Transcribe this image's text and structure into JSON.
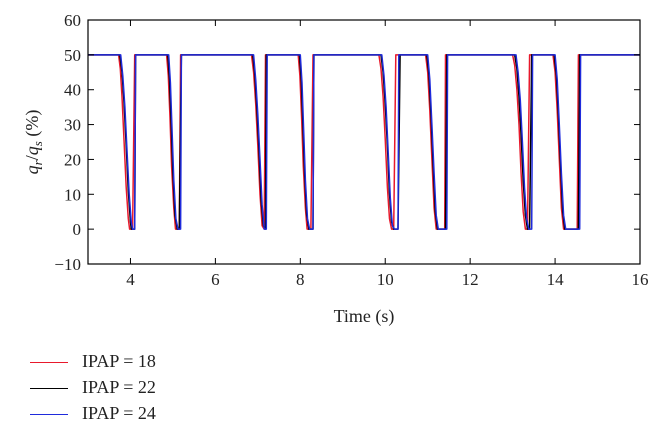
{
  "chart_data": {
    "type": "line",
    "title": "",
    "xlabel": "Time (s)",
    "ylabel": "q_r/q_s (%)",
    "xlim": [
      3,
      16
    ],
    "ylim": [
      -10,
      60
    ],
    "xticks": [
      4,
      6,
      8,
      10,
      12,
      14,
      16
    ],
    "yticks": [
      -10,
      0,
      10,
      20,
      30,
      40,
      50,
      60
    ],
    "grid": false,
    "legend": "below-left",
    "series": [
      {
        "name": "IPAP = 18",
        "color": "#e8192c",
        "x": [
          3.0,
          3.72,
          3.76,
          3.8,
          3.85,
          3.9,
          3.95,
          3.98,
          4.0,
          4.02,
          4.05,
          4.1,
          4.2,
          4.85,
          4.89,
          4.93,
          4.97,
          5.02,
          5.06,
          5.1,
          5.15,
          5.18,
          5.3,
          6.85,
          6.9,
          6.95,
          7.0,
          7.05,
          7.1,
          7.15,
          7.18,
          7.25,
          7.95,
          7.99,
          8.03,
          8.07,
          8.12,
          8.16,
          8.2,
          8.25,
          8.3,
          9.85,
          9.9,
          9.95,
          10.0,
          10.05,
          10.1,
          10.15,
          10.2,
          10.25,
          10.35,
          10.95,
          11.0,
          11.05,
          11.1,
          11.15,
          11.2,
          11.4,
          11.42,
          11.5,
          13.0,
          13.05,
          13.1,
          13.15,
          13.2,
          13.25,
          13.3,
          13.35,
          13.4,
          13.5,
          13.95,
          14.0,
          14.05,
          14.1,
          14.15,
          14.2,
          14.52,
          14.55,
          14.65,
          16.0
        ],
        "y": [
          50,
          50,
          46,
          38,
          25,
          12,
          3,
          0,
          0,
          0,
          0,
          50,
          50,
          50,
          44,
          32,
          18,
          6,
          0,
          0,
          0,
          50,
          50,
          50,
          45,
          36,
          24,
          10,
          1,
          0,
          50,
          50,
          50,
          44,
          32,
          18,
          6,
          0,
          0,
          0,
          50,
          50,
          46,
          38,
          26,
          12,
          3,
          0,
          0,
          50,
          50,
          50,
          45,
          34,
          20,
          6,
          0,
          0,
          50,
          50,
          50,
          47,
          40,
          30,
          16,
          5,
          0,
          0,
          50,
          50,
          50,
          45,
          34,
          20,
          6,
          0,
          0,
          50,
          50,
          50
        ]
      },
      {
        "name": "IPAP = 22",
        "color": "#000000",
        "x": [
          3.0,
          3.75,
          3.8,
          3.85,
          3.9,
          3.95,
          4.0,
          4.02,
          4.05,
          4.1,
          4.12,
          4.2,
          4.88,
          4.92,
          4.96,
          5.0,
          5.05,
          5.1,
          5.15,
          5.2,
          5.3,
          6.88,
          6.93,
          6.98,
          7.03,
          7.08,
          7.13,
          7.18,
          7.2,
          7.25,
          7.98,
          8.02,
          8.06,
          8.1,
          8.15,
          8.2,
          8.25,
          8.3,
          8.32,
          9.9,
          9.95,
          10.0,
          10.05,
          10.1,
          10.15,
          10.2,
          10.25,
          10.3,
          10.35,
          10.98,
          11.03,
          11.08,
          11.13,
          11.18,
          11.23,
          11.42,
          11.45,
          11.5,
          13.05,
          13.1,
          13.15,
          13.2,
          13.25,
          13.3,
          13.35,
          13.4,
          13.45,
          13.5,
          13.98,
          14.03,
          14.08,
          14.13,
          14.18,
          14.23,
          14.55,
          14.58,
          14.65,
          16.0
        ],
        "y": [
          50,
          50,
          45,
          36,
          24,
          11,
          2,
          0,
          0,
          0,
          50,
          50,
          50,
          43,
          30,
          16,
          4,
          0,
          0,
          50,
          50,
          50,
          44,
          34,
          22,
          8,
          1,
          0,
          50,
          50,
          50,
          43,
          30,
          16,
          4,
          0,
          0,
          0,
          50,
          50,
          45,
          36,
          24,
          10,
          2,
          0,
          0,
          0,
          50,
          50,
          44,
          32,
          18,
          5,
          0,
          0,
          50,
          50,
          50,
          46,
          38,
          27,
          14,
          4,
          0,
          0,
          50,
          50,
          50,
          44,
          32,
          18,
          5,
          0,
          0,
          50,
          50,
          50
        ]
      },
      {
        "name": "IPAP = 24",
        "color": "#1f2bdc",
        "x": [
          3.0,
          3.77,
          3.82,
          3.87,
          3.92,
          3.97,
          4.02,
          4.05,
          4.1,
          4.12,
          4.2,
          4.9,
          4.94,
          4.98,
          5.02,
          5.07,
          5.12,
          5.18,
          5.2,
          5.3,
          6.9,
          6.95,
          7.0,
          7.05,
          7.1,
          7.15,
          7.2,
          7.22,
          7.25,
          8.0,
          8.04,
          8.08,
          8.12,
          8.17,
          8.22,
          8.3,
          8.32,
          9.92,
          9.97,
          10.02,
          10.07,
          10.12,
          10.17,
          10.22,
          10.3,
          10.32,
          10.35,
          11.0,
          11.05,
          11.1,
          11.15,
          11.2,
          11.25,
          11.45,
          11.47,
          11.5,
          13.08,
          13.13,
          13.18,
          13.23,
          13.28,
          13.33,
          13.38,
          13.45,
          13.47,
          13.5,
          14.0,
          14.05,
          14.1,
          14.15,
          14.2,
          14.25,
          14.58,
          14.6,
          14.65,
          16.0
        ],
        "y": [
          50,
          50,
          44,
          35,
          22,
          10,
          2,
          0,
          0,
          50,
          50,
          50,
          42,
          28,
          14,
          3,
          0,
          0,
          50,
          50,
          50,
          43,
          33,
          20,
          7,
          0,
          0,
          50,
          50,
          50,
          42,
          28,
          14,
          3,
          0,
          0,
          50,
          50,
          44,
          35,
          22,
          9,
          1,
          0,
          0,
          50,
          50,
          50,
          43,
          30,
          16,
          4,
          0,
          0,
          50,
          50,
          50,
          45,
          37,
          25,
          12,
          3,
          0,
          0,
          50,
          50,
          50,
          43,
          30,
          16,
          4,
          0,
          0,
          50,
          50,
          50
        ]
      }
    ]
  }
}
